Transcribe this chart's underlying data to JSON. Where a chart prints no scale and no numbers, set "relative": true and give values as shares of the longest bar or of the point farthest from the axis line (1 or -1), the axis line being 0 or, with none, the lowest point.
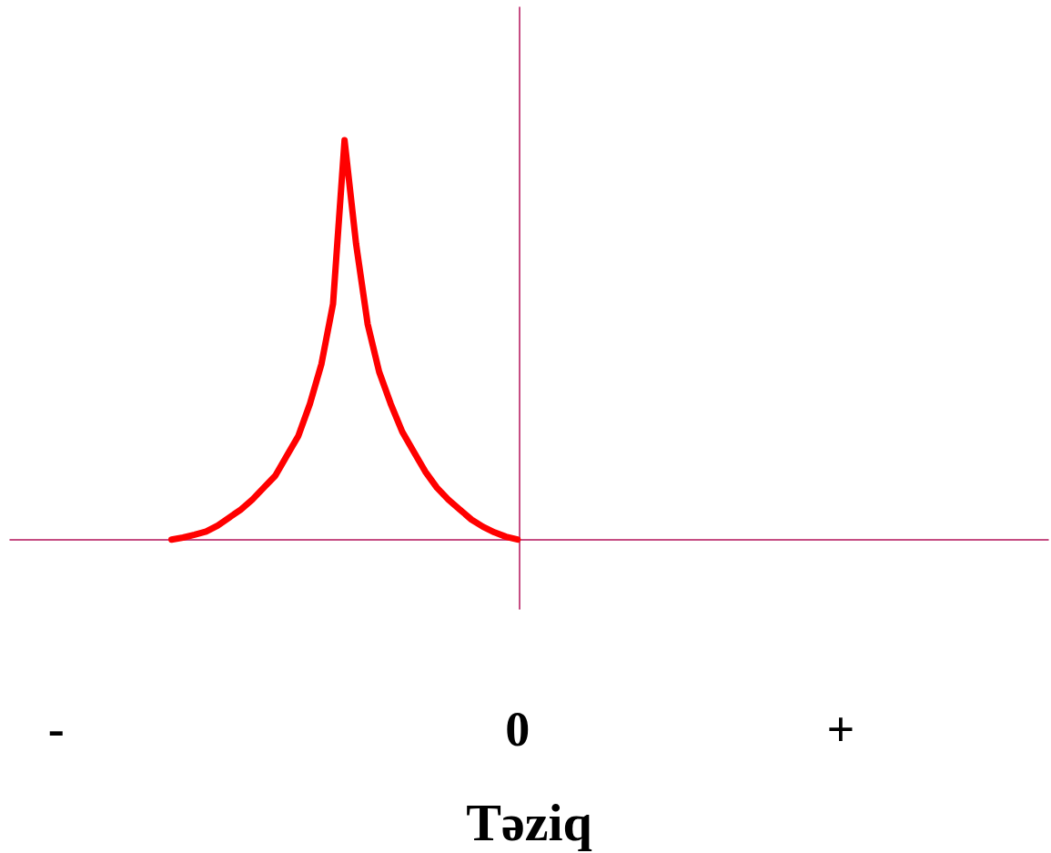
{
  "chart_data": {
    "type": "line",
    "relative": true,
    "xlabel": "Təziq",
    "tick_labels": "x",
    "grid": false,
    "marker": "none",
    "line_style": "solid",
    "categories": [
      null,
      null,
      null,
      null,
      "-",
      null,
      null,
      null,
      null,
      null,
      null,
      null,
      null,
      null,
      null,
      null,
      null,
      null,
      null,
      null,
      null,
      null,
      null,
      null,
      null,
      null,
      null,
      null,
      null,
      null,
      null,
      null,
      null,
      null,
      null,
      null,
      null,
      null,
      null,
      null,
      null,
      null,
      null,
      null,
      "0",
      null,
      null,
      null,
      null,
      null,
      null,
      null,
      null,
      null,
      null,
      null,
      null,
      null,
      null,
      null,
      null,
      null,
      null,
      null,
      null,
      null,
      null,
      null,
      null,
      null,
      null,
      null,
      "+",
      null,
      null,
      null,
      null,
      null,
      null,
      null,
      null,
      null,
      null,
      null,
      null,
      null,
      null,
      null,
      null,
      null,
      null
    ],
    "series": [
      {
        "color": "#ff0000",
        "values": [
          null,
          null,
          null,
          null,
          null,
          null,
          null,
          null,
          null,
          null,
          null,
          null,
          null,
          null,
          0,
          0.005,
          0.012,
          0.02,
          0.035,
          0.055,
          0.075,
          0.1,
          0.13,
          0.16,
          0.21,
          0.26,
          0.34,
          0.44,
          0.59,
          1,
          0.74,
          0.54,
          0.42,
          0.34,
          0.27,
          0.22,
          0.17,
          0.13,
          0.1,
          0.075,
          0.05,
          0.032,
          0.018,
          0.007,
          0,
          null,
          null,
          null,
          null,
          null,
          null,
          null,
          null,
          null,
          null,
          null,
          null,
          null,
          null,
          null,
          null,
          null,
          null,
          null,
          null,
          null,
          null,
          null,
          null,
          null,
          null,
          null,
          null,
          null,
          null,
          null,
          null,
          null,
          null,
          null,
          null,
          null,
          null,
          null,
          null,
          null,
          null,
          null,
          null,
          null,
          null
        ]
      }
    ]
  }
}
